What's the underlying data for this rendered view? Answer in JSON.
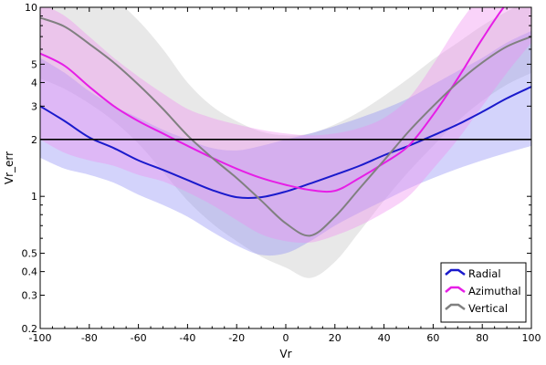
{
  "chart_data": {
    "type": "line",
    "xlabel": "Vr",
    "ylabel": "Vr_err",
    "xlim": [
      -100,
      100
    ],
    "ylim": [
      0.2,
      10
    ],
    "y_scale": "log",
    "x_ticks": [
      -100,
      -80,
      -60,
      -40,
      -20,
      0,
      20,
      40,
      60,
      80,
      100
    ],
    "x_tick_labels": [
      "-100",
      "-80",
      "-60",
      "-40",
      "-20",
      "0",
      "20",
      "40",
      "60",
      "80",
      "100"
    ],
    "y_ticks": [
      0.2,
      0.3,
      0.4,
      0.5,
      1,
      2,
      3,
      4,
      5,
      10
    ],
    "y_tick_labels": [
      "0.2",
      "0.3",
      "0.4",
      "0.5",
      "1",
      "2",
      "3",
      "4",
      "5",
      "10"
    ],
    "grid": false,
    "legend_position": "bottom-right",
    "reference_line": {
      "y": 2,
      "color": "#000000"
    },
    "x": [
      -100,
      -90,
      -80,
      -70,
      -60,
      -50,
      -40,
      -30,
      -20,
      -10,
      0,
      10,
      20,
      30,
      40,
      50,
      60,
      70,
      80,
      90,
      100
    ],
    "series": [
      {
        "name": "Radial",
        "color": "#1a1acc",
        "band_color": "#8c8cf5",
        "values": [
          3.0,
          2.5,
          2.05,
          1.8,
          1.55,
          1.38,
          1.22,
          1.08,
          0.99,
          0.99,
          1.06,
          1.17,
          1.3,
          1.45,
          1.65,
          1.85,
          2.1,
          2.4,
          2.8,
          3.3,
          3.8
        ],
        "lower": [
          1.6,
          1.4,
          1.3,
          1.18,
          1.02,
          0.9,
          0.78,
          0.65,
          0.55,
          0.49,
          0.5,
          0.58,
          0.7,
          0.82,
          0.95,
          1.1,
          1.25,
          1.4,
          1.55,
          1.7,
          1.85
        ],
        "upper": [
          5.4,
          4.5,
          3.6,
          3.0,
          2.6,
          2.25,
          2.0,
          1.8,
          1.75,
          1.85,
          2.0,
          2.15,
          2.35,
          2.6,
          2.9,
          3.3,
          3.9,
          4.6,
          5.4,
          6.5,
          7.5
        ]
      },
      {
        "name": "Azimuthal",
        "color": "#e61ee6",
        "band_color": "#f08cf0",
        "values": [
          5.7,
          4.9,
          3.8,
          3.0,
          2.5,
          2.15,
          1.85,
          1.6,
          1.4,
          1.25,
          1.15,
          1.08,
          1.07,
          1.25,
          1.5,
          1.85,
          2.7,
          4.2,
          6.8,
          10.5,
          14.0
        ],
        "lower": [
          2.0,
          1.7,
          1.55,
          1.45,
          1.3,
          1.2,
          1.05,
          0.9,
          0.75,
          0.63,
          0.58,
          0.57,
          0.62,
          0.7,
          0.82,
          1.0,
          1.4,
          2.0,
          3.0,
          4.5,
          6.5
        ],
        "upper": [
          10.5,
          9.0,
          7.0,
          5.4,
          4.3,
          3.5,
          2.9,
          2.6,
          2.4,
          2.25,
          2.15,
          2.1,
          2.15,
          2.3,
          2.6,
          3.3,
          5.0,
          8.0,
          12.0,
          18.0,
          25.0
        ]
      },
      {
        "name": "Vertical",
        "color": "#808080",
        "band_color": "#d2d2d2",
        "values": [
          8.8,
          7.9,
          6.4,
          5.1,
          3.9,
          2.9,
          2.1,
          1.6,
          1.25,
          0.95,
          0.72,
          0.62,
          0.78,
          1.1,
          1.55,
          2.2,
          3.0,
          4.0,
          5.1,
          6.2,
          7.0
        ],
        "lower": [
          4.2,
          3.7,
          3.1,
          2.5,
          1.9,
          1.35,
          0.95,
          0.72,
          0.58,
          0.48,
          0.42,
          0.37,
          0.45,
          0.65,
          0.95,
          1.35,
          1.85,
          2.5,
          3.2,
          3.9,
          4.5
        ],
        "upper": [
          14.0,
          13.0,
          12.0,
          11.0,
          8.5,
          6.0,
          4.0,
          3.0,
          2.5,
          2.2,
          2.1,
          2.15,
          2.4,
          2.8,
          3.4,
          4.2,
          5.3,
          6.5,
          8.0,
          9.5,
          11.0
        ]
      }
    ]
  }
}
